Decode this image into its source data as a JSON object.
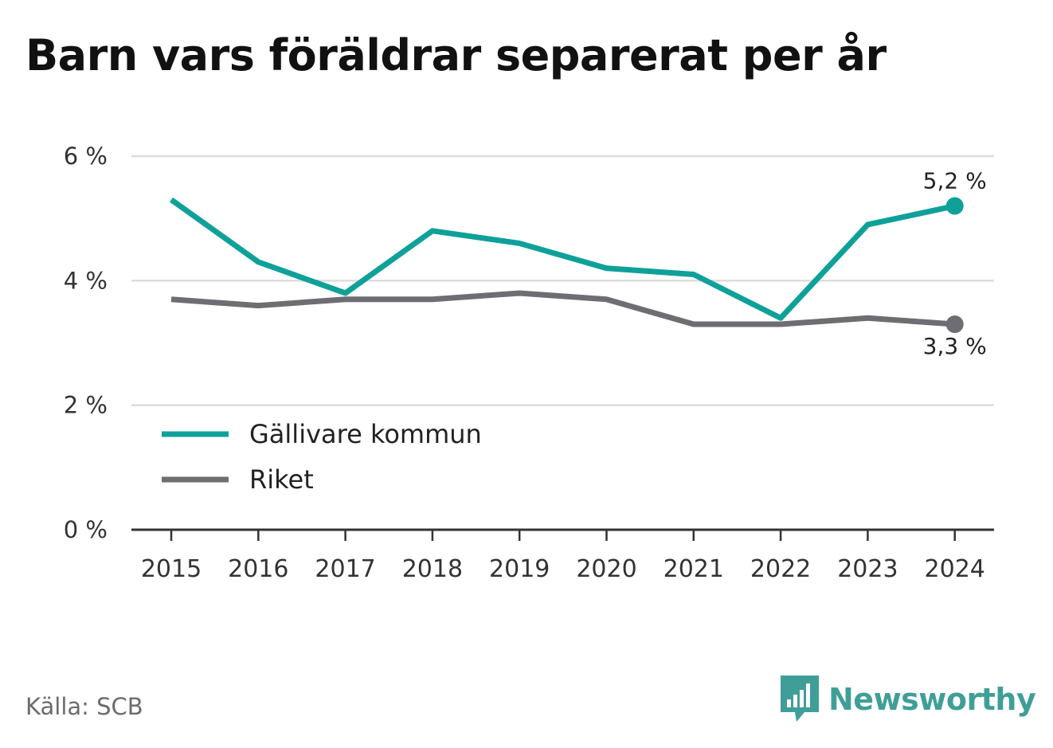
{
  "title": "Barn vars föräldrar separerat per år",
  "source": "Källa: SCB",
  "brand": {
    "name": "Newsworthy",
    "icon": "newsworthy-logo-icon",
    "color": "#3f9f98"
  },
  "colors": {
    "series1": "#0fa199",
    "series2": "#6e6d73",
    "grid": "#dddddd",
    "axis": "#333333"
  },
  "chart_data": {
    "type": "line",
    "categories": [
      "2015",
      "2016",
      "2017",
      "2018",
      "2019",
      "2020",
      "2021",
      "2022",
      "2023",
      "2024"
    ],
    "series": [
      {
        "name": "Gällivare kommun",
        "values": [
          5.3,
          4.3,
          3.8,
          4.8,
          4.6,
          4.2,
          4.1,
          3.4,
          4.9,
          5.2
        ]
      },
      {
        "name": "Riket",
        "values": [
          3.7,
          3.6,
          3.7,
          3.7,
          3.8,
          3.7,
          3.3,
          3.3,
          3.4,
          3.3
        ]
      }
    ],
    "yticks": [
      {
        "value": 0,
        "label": "0 %"
      },
      {
        "value": 2,
        "label": "2 %"
      },
      {
        "value": 4,
        "label": "4 %"
      },
      {
        "value": 6,
        "label": "6 %"
      }
    ],
    "ylim": [
      0,
      6
    ],
    "end_labels": [
      "5,2 %",
      "3,3 %"
    ],
    "legend_position": "bottom-left",
    "grid": true
  }
}
